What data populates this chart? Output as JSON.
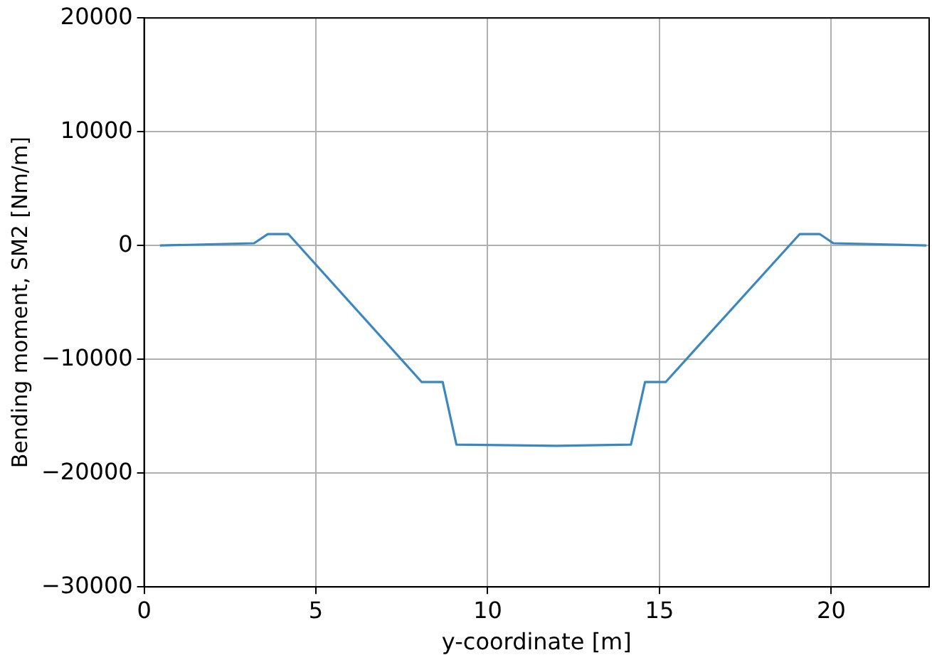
{
  "chart_data": {
    "type": "line",
    "xlabel": "y-coordinate [m]",
    "ylabel": "Bending moment, SM2 [Nm/m]",
    "x": [
      0.46,
      3.2,
      3.6,
      4.2,
      8.08,
      8.69,
      9.09,
      12,
      14.17,
      14.58,
      15.18,
      19.08,
      19.67,
      20.06,
      22.77
    ],
    "series": [
      {
        "color": "#3b87c0",
        "values": [
          0,
          200,
          1000,
          1000,
          -12000,
          -12000,
          -17500,
          -17600,
          -17500,
          -12000,
          -12000,
          1000,
          1000,
          200,
          0
        ]
      }
    ],
    "xlim": [
      0,
      22.85
    ],
    "xticks": [
      0,
      5,
      10,
      15,
      20
    ],
    "ylim": [
      -30000,
      20000
    ],
    "yticks": [
      -30000,
      -20000,
      -10000,
      0,
      10000,
      20000
    ],
    "grid": true,
    "legend": false,
    "marker": "none",
    "line_style": "solid"
  }
}
